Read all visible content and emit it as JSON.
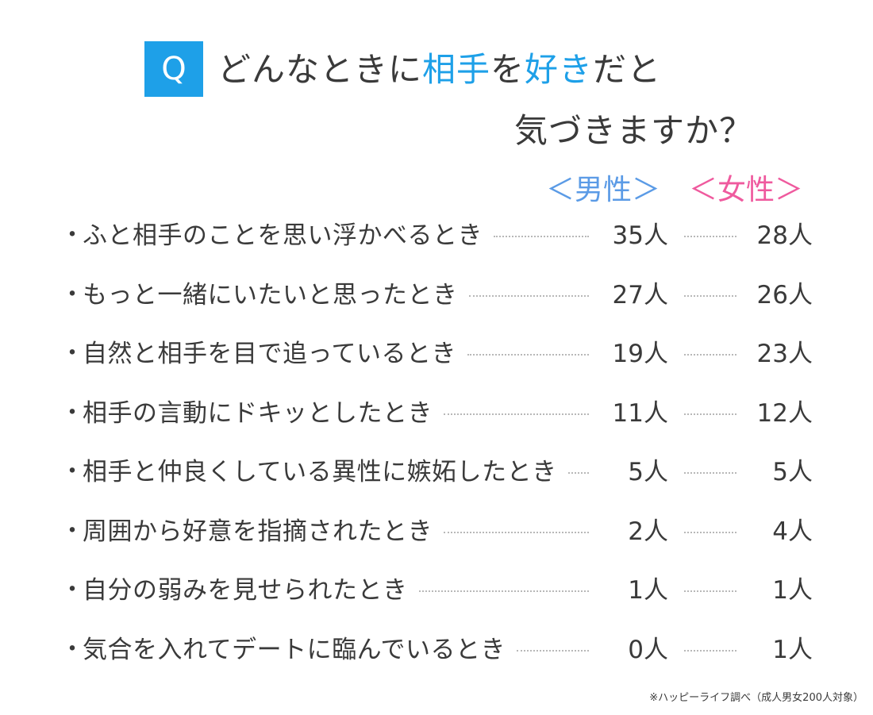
{
  "title": {
    "badge": "Q",
    "line1_part1": "どんなときに",
    "line1_hl1": "相手",
    "line1_part2": "を",
    "line1_hl2": "好き",
    "line1_part3": "だと",
    "line2": "気づきますか？"
  },
  "colors": {
    "accent": "#1ea0e8",
    "male": "#5b9be6",
    "female": "#ef5a9e",
    "text": "#3a3a3a"
  },
  "chart_data": {
    "type": "table",
    "series": [
      {
        "name": "＜男性＞",
        "values": [
          35,
          27,
          19,
          11,
          5,
          2,
          1,
          0
        ]
      },
      {
        "name": "＜女性＞",
        "values": [
          28,
          26,
          23,
          12,
          5,
          4,
          1,
          1
        ]
      }
    ],
    "categories": [
      "ふと相手のことを思い浮かべるとき",
      "もっと一緒にいたいと思ったとき",
      "自然と相手を目で追っているとき",
      "相手の言動にドキッとしたとき",
      "相手と仲良くしている異性に嫉妬したとき",
      "周囲から好意を指摘されたとき",
      "自分の弱みを見せられたとき",
      "気合を入れてデートに臨んでいるとき"
    ],
    "bullet": "・",
    "unit": "人"
  },
  "footnote": "※ハッピーライフ調べ（成人男女200人対象）"
}
